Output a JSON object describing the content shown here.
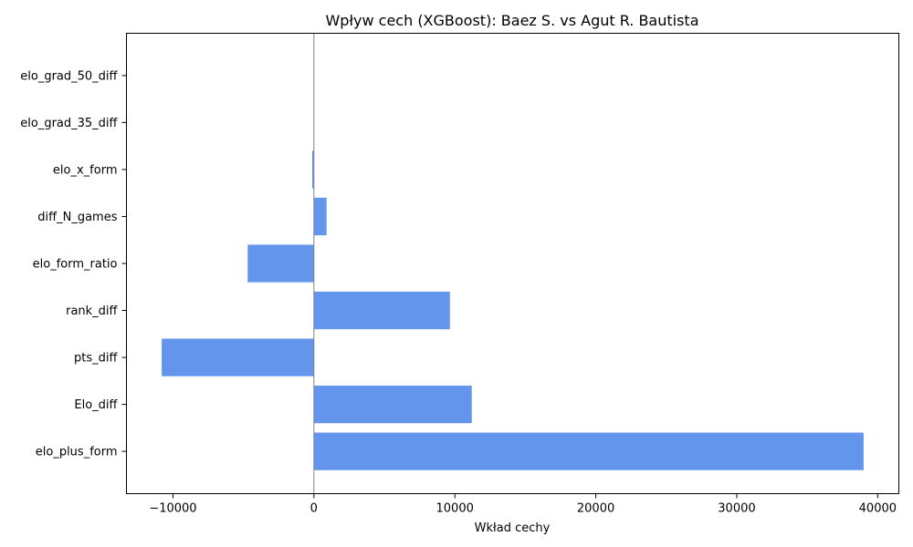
{
  "chart_data": {
    "type": "bar",
    "orientation": "horizontal",
    "title": "Wpływ cech (XGBoost): Baez S. vs Agut R. Bautista",
    "xlabel": "Wkład cechy",
    "ylabel": "",
    "categories": [
      "elo_plus_form",
      "Elo_diff",
      "pts_diff",
      "rank_diff",
      "elo_form_ratio",
      "diff_N_games",
      "elo_x_form",
      "elo_grad_35_diff",
      "elo_grad_50_diff"
    ],
    "values": [
      39000,
      11200,
      -10800,
      9650,
      -4700,
      900,
      -120,
      0,
      0
    ],
    "xlim": [
      -13300,
      41500
    ],
    "xticks": [
      -10000,
      0,
      10000,
      20000,
      30000,
      40000
    ],
    "xtick_labels": [
      "−10000",
      "0",
      "10000",
      "20000",
      "30000",
      "40000"
    ],
    "bar_color": "#6495ED",
    "zero_line_color": "#808080",
    "grid": false,
    "legend": "none"
  }
}
